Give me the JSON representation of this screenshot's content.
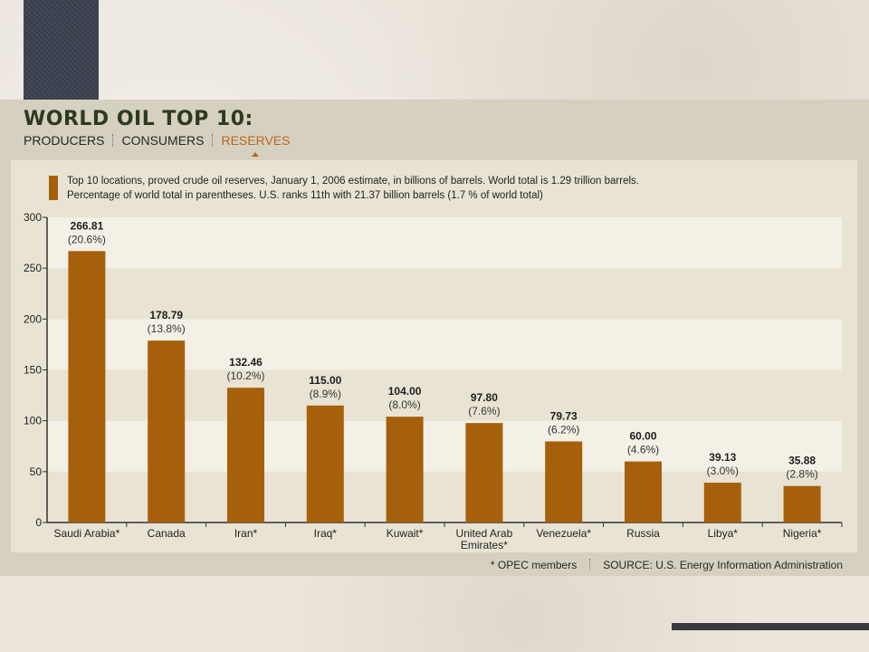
{
  "header": {
    "title": "WORLD OIL TOP 10:",
    "tabs": [
      {
        "label": "PRODUCERS",
        "active": false
      },
      {
        "label": "CONSUMERS",
        "active": false
      },
      {
        "label": "RESERVES",
        "active": true
      }
    ]
  },
  "legend": {
    "line1": "Top 10 locations, proved crude oil reserves, January 1, 2006 estimate, in billions of barrels. World total is 1.29 trillion barrels.",
    "line2": "Percentage of world total in parentheses. U.S. ranks 11th with 21.37 billion barrels (1.7 % of world total)"
  },
  "footer": {
    "note": "* OPEC members",
    "source": "SOURCE: U.S. Energy Information Administration"
  },
  "colors": {
    "bar": "#a6600b",
    "band_light": "#f3f0e6",
    "band_dark": "#e8e3d3",
    "accent": "#b8671c",
    "title": "#2e3a1c"
  },
  "chart_data": {
    "type": "bar",
    "categories": [
      "Saudi Arabia*",
      "Canada",
      "Iran*",
      "Iraq*",
      "Kuwait*",
      "United Arab Emirates*",
      "Venezuela*",
      "Russia",
      "Libya*",
      "Nigeria*"
    ],
    "values": [
      266.81,
      178.79,
      132.46,
      115.0,
      104.0,
      97.8,
      79.73,
      60.0,
      39.13,
      35.88
    ],
    "value_labels": [
      "266.81",
      "178.79",
      "132.46",
      "115.00",
      "104.00",
      "97.80",
      "79.73",
      "60.00",
      "39.13",
      "35.88"
    ],
    "percent_labels": [
      "(20.6%)",
      "(13.8%)",
      "(10.2%)",
      "(8.9%)",
      "(8.0%)",
      "(7.6%)",
      "(6.2%)",
      "(4.6%)",
      "(3.0%)",
      "(2.8%)"
    ],
    "yticks": [
      0,
      50,
      100,
      150,
      200,
      250,
      300
    ],
    "ylim": [
      0,
      300
    ],
    "title": "",
    "xlabel": "",
    "ylabel": "",
    "grid": "alternating horizontal bands",
    "legend": "top"
  }
}
